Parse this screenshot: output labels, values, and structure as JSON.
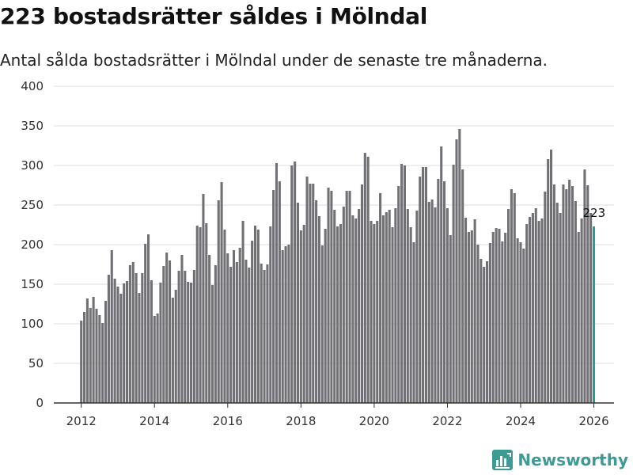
{
  "title": "223 bostadsrätter såldes i Mölndal",
  "subtitle": "Antal sålda bostadsrätter i Mölndal under de senaste tre månaderna.",
  "brand": {
    "name": "Newsworthy",
    "icon": "newsworthy-bar-chart-icon"
  },
  "colors": {
    "bar": "#717075",
    "highlight": "#2a9d8f",
    "grid": "#dddddd",
    "axis": "#333333",
    "brand": "#3d9a94"
  },
  "chart_data": {
    "type": "bar",
    "title": "223 bostadsrätter såldes i Mölndal",
    "subtitle": "Antal sålda bostadsrätter i Mölndal under de senaste tre månaderna.",
    "xlabel": "",
    "ylabel": "",
    "ylim": [
      0,
      400
    ],
    "yticks": [
      "0",
      "50",
      "100",
      "150",
      "200",
      "250",
      "300",
      "350",
      "400"
    ],
    "xlim": [
      2011.25,
      2026.55
    ],
    "xticks": [
      "2012",
      "2014",
      "2016",
      "2018",
      "2020",
      "2022",
      "2024",
      "2026"
    ],
    "x_start": 2012.0,
    "x_step": 0.08333,
    "grid": true,
    "highlight_last": true,
    "last_value_label": "223",
    "values": [
      104,
      115,
      132,
      120,
      134,
      119,
      111,
      101,
      129,
      162,
      193,
      157,
      147,
      138,
      151,
      154,
      174,
      178,
      164,
      139,
      164,
      201,
      213,
      155,
      110,
      113,
      152,
      173,
      190,
      180,
      133,
      143,
      167,
      187,
      167,
      153,
      152,
      168,
      224,
      222,
      264,
      227,
      187,
      149,
      174,
      256,
      279,
      219,
      189,
      172,
      193,
      178,
      196,
      230,
      181,
      171,
      205,
      224,
      219,
      176,
      168,
      175,
      223,
      269,
      303,
      280,
      193,
      198,
      200,
      300,
      305,
      253,
      218,
      225,
      286,
      277,
      277,
      256,
      236,
      199,
      220,
      272,
      268,
      244,
      223,
      226,
      248,
      268,
      268,
      237,
      233,
      245,
      276,
      316,
      311,
      230,
      226,
      230,
      265,
      237,
      241,
      244,
      222,
      246,
      274,
      302,
      300,
      245,
      222,
      203,
      243,
      286,
      298,
      298,
      254,
      257,
      247,
      283,
      324,
      280,
      246,
      212,
      301,
      333,
      346,
      295,
      234,
      216,
      218,
      232,
      200,
      182,
      172,
      179,
      202,
      216,
      221,
      220,
      204,
      215,
      245,
      270,
      265,
      208,
      203,
      195,
      226,
      235,
      240,
      246,
      230,
      233,
      267,
      308,
      320,
      276,
      253,
      240,
      276,
      270,
      282,
      274,
      255,
      216,
      233,
      295,
      275,
      240,
      223
    ]
  }
}
